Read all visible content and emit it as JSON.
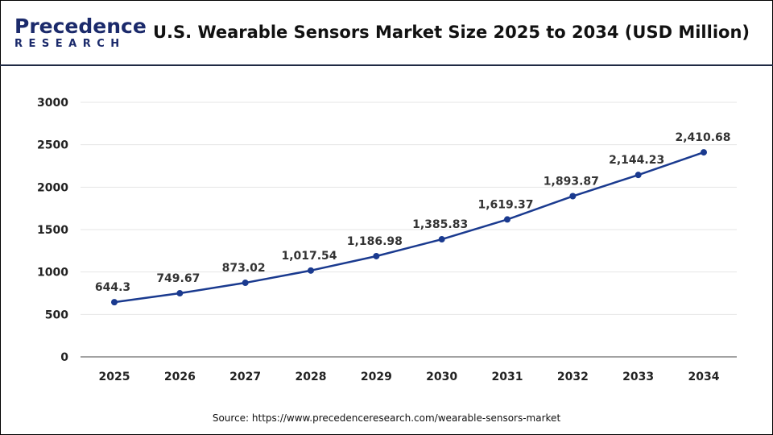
{
  "brand": {
    "logo_line1": "Precedence",
    "logo_line2": "RESEARCH"
  },
  "chart_data": {
    "type": "line",
    "title": "U.S. Wearable Sensors Market Size 2025 to 2034 (USD Million)",
    "categories": [
      "2025",
      "2026",
      "2027",
      "2028",
      "2029",
      "2030",
      "2031",
      "2032",
      "2033",
      "2034"
    ],
    "values": [
      644.3,
      749.67,
      873.02,
      1017.54,
      1186.98,
      1385.83,
      1619.37,
      1893.87,
      2144.23,
      2410.68
    ],
    "data_labels": [
      "644.3",
      "749.67",
      "873.02",
      "1,017.54",
      "1,186.98",
      "1,385.83",
      "1,619.37",
      "1,893.87",
      "2,144.23",
      "2,410.68"
    ],
    "yticks": [
      "0",
      "500",
      "1000",
      "1500",
      "2000",
      "2500",
      "3000"
    ],
    "ylim": [
      0,
      3000
    ],
    "grid": true,
    "line_color": "#1a3a8f",
    "xlabel": "",
    "ylabel": ""
  },
  "source": "Source: https://www.precedenceresearch.com/wearable-sensors-market"
}
